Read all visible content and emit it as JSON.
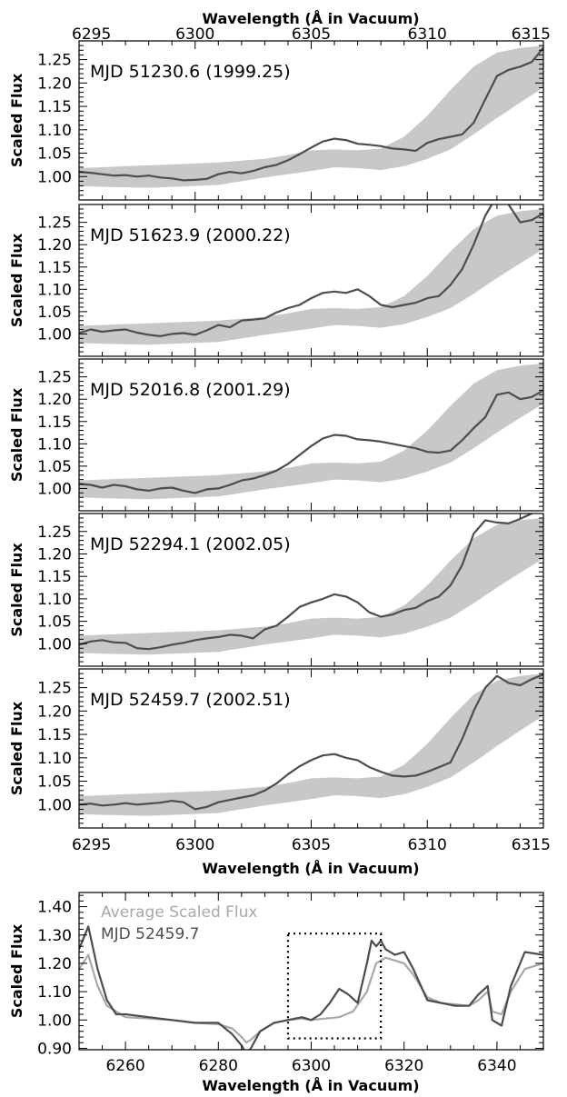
{
  "colors": {
    "band": "#c8c8c8",
    "spectrum": "#4d4d4d",
    "average": "#a8a8a8",
    "frame": "#000000"
  },
  "chart_data": [
    {
      "type": "area",
      "panel_label": "MJD 51230.6 (1999.25)",
      "top_xlabel": "Wavelength (Å in Vacuum)",
      "ylabel": "Scaled Flux",
      "xlim": [
        6295,
        6315
      ],
      "ylim": [
        0.95,
        1.29
      ],
      "xticks": [
        "6295",
        "6300",
        "6305",
        "6310",
        "6315"
      ],
      "yticks": [
        "1.00",
        "1.05",
        "1.10",
        "1.15",
        "1.20",
        "1.25"
      ],
      "band_x": [
        6295,
        6296,
        6297,
        6298,
        6299,
        6300,
        6301,
        6302,
        6303,
        6304,
        6305,
        6306,
        6307,
        6308,
        6309,
        6310,
        6311,
        6312,
        6313,
        6314,
        6315
      ],
      "band_lower": [
        0.98,
        0.978,
        0.977,
        0.976,
        0.978,
        0.98,
        0.982,
        0.99,
        0.998,
        1.005,
        1.012,
        1.02,
        1.018,
        1.014,
        1.022,
        1.038,
        1.058,
        1.09,
        1.125,
        1.158,
        1.19
      ],
      "band_upper": [
        1.018,
        1.02,
        1.022,
        1.024,
        1.026,
        1.028,
        1.03,
        1.034,
        1.038,
        1.046,
        1.056,
        1.058,
        1.056,
        1.06,
        1.085,
        1.13,
        1.185,
        1.235,
        1.265,
        1.275,
        1.28
      ],
      "series": [
        {
          "x": [
            6295,
            6295.5,
            6296,
            6296.5,
            6297,
            6297.5,
            6298,
            6298.5,
            6299,
            6299.5,
            6300,
            6300.5,
            6301,
            6301.5,
            6302,
            6302.5,
            6303,
            6303.5,
            6304,
            6304.5,
            6305,
            6305.5,
            6306,
            6306.5,
            6307,
            6307.5,
            6308,
            6308.5,
            6309,
            6309.5,
            6310,
            6310.5,
            6311,
            6311.5,
            6312,
            6312.5,
            6313,
            6313.5,
            6314,
            6314.5,
            6315
          ],
          "y": [
            1.01,
            1.008,
            1.005,
            1.002,
            1.003,
            1.0,
            1.002,
            0.998,
            0.996,
            0.992,
            0.993,
            0.995,
            1.005,
            1.01,
            1.007,
            1.012,
            1.02,
            1.025,
            1.035,
            1.048,
            1.062,
            1.075,
            1.081,
            1.078,
            1.07,
            1.068,
            1.065,
            1.06,
            1.058,
            1.055,
            1.072,
            1.08,
            1.085,
            1.09,
            1.115,
            1.165,
            1.215,
            1.228,
            1.235,
            1.245,
            1.275
          ]
        }
      ]
    },
    {
      "type": "area",
      "panel_label": "MJD 51623.9 (2000.22)",
      "ylabel": "Scaled Flux",
      "xlim": [
        6295,
        6315
      ],
      "ylim": [
        0.95,
        1.29
      ],
      "yticks": [
        "1.00",
        "1.05",
        "1.10",
        "1.15",
        "1.20",
        "1.25"
      ],
      "band_x": [
        6295,
        6296,
        6297,
        6298,
        6299,
        6300,
        6301,
        6302,
        6303,
        6304,
        6305,
        6306,
        6307,
        6308,
        6309,
        6310,
        6311,
        6312,
        6313,
        6314,
        6315
      ],
      "band_lower": [
        0.98,
        0.978,
        0.977,
        0.976,
        0.978,
        0.98,
        0.982,
        0.99,
        0.998,
        1.005,
        1.012,
        1.02,
        1.018,
        1.014,
        1.022,
        1.038,
        1.058,
        1.09,
        1.125,
        1.158,
        1.19
      ],
      "band_upper": [
        1.018,
        1.02,
        1.022,
        1.024,
        1.026,
        1.028,
        1.03,
        1.034,
        1.038,
        1.046,
        1.056,
        1.058,
        1.056,
        1.06,
        1.085,
        1.13,
        1.185,
        1.235,
        1.265,
        1.275,
        1.28
      ],
      "series": [
        {
          "x": [
            6295,
            6295.5,
            6296,
            6296.5,
            6297,
            6297.5,
            6298,
            6298.5,
            6299,
            6299.5,
            6300,
            6300.5,
            6301,
            6301.5,
            6302,
            6302.5,
            6303,
            6303.5,
            6304,
            6304.5,
            6305,
            6305.5,
            6306,
            6306.5,
            6307,
            6307.5,
            6308,
            6308.5,
            6309,
            6309.5,
            6310,
            6310.5,
            6311,
            6311.5,
            6312,
            6312.5,
            6313,
            6313.5,
            6314,
            6314.5,
            6315
          ],
          "y": [
            1.002,
            1.01,
            1.005,
            1.008,
            1.01,
            1.003,
            0.998,
            0.995,
            1.0,
            1.002,
            0.998,
            1.008,
            1.02,
            1.015,
            1.03,
            1.032,
            1.035,
            1.048,
            1.058,
            1.065,
            1.08,
            1.092,
            1.095,
            1.092,
            1.1,
            1.085,
            1.065,
            1.06,
            1.065,
            1.07,
            1.08,
            1.085,
            1.11,
            1.145,
            1.2,
            1.265,
            1.31,
            1.29,
            1.25,
            1.255,
            1.27
          ]
        }
      ]
    },
    {
      "type": "area",
      "panel_label": "MJD 52016.8 (2001.29)",
      "ylabel": "Scaled Flux",
      "xlim": [
        6295,
        6315
      ],
      "ylim": [
        0.95,
        1.29
      ],
      "yticks": [
        "1.00",
        "1.05",
        "1.10",
        "1.15",
        "1.20",
        "1.25"
      ],
      "band_x": [
        6295,
        6296,
        6297,
        6298,
        6299,
        6300,
        6301,
        6302,
        6303,
        6304,
        6305,
        6306,
        6307,
        6308,
        6309,
        6310,
        6311,
        6312,
        6313,
        6314,
        6315
      ],
      "band_lower": [
        0.98,
        0.978,
        0.977,
        0.976,
        0.978,
        0.98,
        0.982,
        0.99,
        0.998,
        1.005,
        1.012,
        1.02,
        1.018,
        1.014,
        1.022,
        1.038,
        1.058,
        1.09,
        1.125,
        1.158,
        1.19
      ],
      "band_upper": [
        1.018,
        1.02,
        1.022,
        1.024,
        1.026,
        1.028,
        1.03,
        1.034,
        1.038,
        1.046,
        1.056,
        1.058,
        1.056,
        1.06,
        1.085,
        1.13,
        1.185,
        1.235,
        1.265,
        1.275,
        1.28
      ],
      "series": [
        {
          "x": [
            6295,
            6295.5,
            6296,
            6296.5,
            6297,
            6297.5,
            6298,
            6298.5,
            6299,
            6299.5,
            6300,
            6300.5,
            6301,
            6301.5,
            6302,
            6302.5,
            6303,
            6303.5,
            6304,
            6304.5,
            6305,
            6305.5,
            6306,
            6306.5,
            6307,
            6307.5,
            6308,
            6308.5,
            6309,
            6309.5,
            6310,
            6310.5,
            6311,
            6311.5,
            6312,
            6312.5,
            6313,
            6313.5,
            6314,
            6314.5,
            6315
          ],
          "y": [
            1.01,
            1.008,
            1.002,
            1.008,
            1.005,
            0.998,
            0.995,
            1.0,
            1.002,
            0.995,
            0.99,
            0.998,
            1.0,
            1.008,
            1.018,
            1.022,
            1.03,
            1.04,
            1.055,
            1.075,
            1.095,
            1.112,
            1.12,
            1.118,
            1.11,
            1.108,
            1.105,
            1.1,
            1.095,
            1.09,
            1.082,
            1.08,
            1.085,
            1.108,
            1.135,
            1.16,
            1.21,
            1.215,
            1.2,
            1.205,
            1.22
          ]
        }
      ]
    },
    {
      "type": "area",
      "panel_label": "MJD 52294.1 (2002.05)",
      "ylabel": "Scaled Flux",
      "xlim": [
        6295,
        6315
      ],
      "ylim": [
        0.95,
        1.29
      ],
      "yticks": [
        "1.00",
        "1.05",
        "1.10",
        "1.15",
        "1.20",
        "1.25"
      ],
      "band_x": [
        6295,
        6296,
        6297,
        6298,
        6299,
        6300,
        6301,
        6302,
        6303,
        6304,
        6305,
        6306,
        6307,
        6308,
        6309,
        6310,
        6311,
        6312,
        6313,
        6314,
        6315
      ],
      "band_lower": [
        0.98,
        0.978,
        0.977,
        0.976,
        0.978,
        0.98,
        0.982,
        0.99,
        0.998,
        1.005,
        1.012,
        1.02,
        1.018,
        1.014,
        1.022,
        1.038,
        1.058,
        1.09,
        1.125,
        1.158,
        1.19
      ],
      "band_upper": [
        1.018,
        1.02,
        1.022,
        1.024,
        1.026,
        1.028,
        1.03,
        1.034,
        1.038,
        1.046,
        1.056,
        1.058,
        1.056,
        1.06,
        1.085,
        1.13,
        1.185,
        1.235,
        1.265,
        1.275,
        1.28
      ],
      "series": [
        {
          "x": [
            6295,
            6295.5,
            6296,
            6296.5,
            6297,
            6297.5,
            6298,
            6298.5,
            6299,
            6299.5,
            6300,
            6300.5,
            6301,
            6301.5,
            6302,
            6302.5,
            6303,
            6303.5,
            6304,
            6304.5,
            6305,
            6305.5,
            6306,
            6306.5,
            6307,
            6307.5,
            6308,
            6308.5,
            6309,
            6309.5,
            6310,
            6310.5,
            6311,
            6311.5,
            6312,
            6312.5,
            6313,
            6313.5,
            6314,
            6314.5,
            6315
          ],
          "y": [
            0.998,
            1.005,
            1.008,
            1.003,
            1.002,
            0.99,
            0.988,
            0.992,
            0.998,
            1.002,
            1.008,
            1.012,
            1.015,
            1.02,
            1.018,
            1.012,
            1.032,
            1.04,
            1.06,
            1.082,
            1.092,
            1.1,
            1.11,
            1.105,
            1.092,
            1.07,
            1.06,
            1.065,
            1.075,
            1.08,
            1.095,
            1.105,
            1.13,
            1.175,
            1.245,
            1.275,
            1.27,
            1.268,
            1.278,
            1.29,
            1.3
          ]
        }
      ]
    },
    {
      "type": "area",
      "panel_label": "MJD 52459.7 (2002.51)",
      "ylabel": "Scaled Flux",
      "bottom_xlabel": "Wavelength (Å in Vacuum)",
      "xlim": [
        6295,
        6315
      ],
      "ylim": [
        0.95,
        1.29
      ],
      "xticks": [
        "6295",
        "6300",
        "6305",
        "6310",
        "6315"
      ],
      "yticks": [
        "1.00",
        "1.05",
        "1.10",
        "1.15",
        "1.20",
        "1.25"
      ],
      "band_x": [
        6295,
        6296,
        6297,
        6298,
        6299,
        6300,
        6301,
        6302,
        6303,
        6304,
        6305,
        6306,
        6307,
        6308,
        6309,
        6310,
        6311,
        6312,
        6313,
        6314,
        6315
      ],
      "band_lower": [
        0.98,
        0.978,
        0.977,
        0.976,
        0.978,
        0.98,
        0.982,
        0.99,
        0.998,
        1.005,
        1.012,
        1.02,
        1.018,
        1.014,
        1.022,
        1.038,
        1.058,
        1.09,
        1.125,
        1.158,
        1.19
      ],
      "band_upper": [
        1.018,
        1.02,
        1.022,
        1.024,
        1.026,
        1.028,
        1.03,
        1.034,
        1.038,
        1.046,
        1.056,
        1.058,
        1.056,
        1.06,
        1.085,
        1.13,
        1.185,
        1.235,
        1.265,
        1.275,
        1.28
      ],
      "series": [
        {
          "x": [
            6295,
            6295.5,
            6296,
            6296.5,
            6297,
            6297.5,
            6298,
            6298.5,
            6299,
            6299.5,
            6300,
            6300.5,
            6301,
            6301.5,
            6302,
            6302.5,
            6303,
            6303.5,
            6304,
            6304.5,
            6305,
            6305.5,
            6306,
            6306.5,
            6307,
            6307.5,
            6308,
            6308.5,
            6309,
            6309.5,
            6310,
            6310.5,
            6311,
            6311.5,
            6312,
            6312.5,
            6313,
            6313.5,
            6314,
            6314.5,
            6315
          ],
          "y": [
            1.0,
            1.002,
            0.998,
            1.0,
            1.003,
            1.0,
            1.002,
            1.004,
            1.008,
            1.005,
            0.99,
            0.995,
            1.005,
            1.01,
            1.015,
            1.02,
            1.03,
            1.045,
            1.065,
            1.082,
            1.095,
            1.105,
            1.108,
            1.1,
            1.095,
            1.08,
            1.07,
            1.062,
            1.06,
            1.062,
            1.07,
            1.08,
            1.09,
            1.14,
            1.2,
            1.25,
            1.275,
            1.26,
            1.255,
            1.268,
            1.278
          ]
        }
      ]
    },
    {
      "type": "line",
      "xlabel": "Wavelength (Å in Vacuum)",
      "ylabel": "Scaled Flux",
      "xlim": [
        6250,
        6350
      ],
      "ylim": [
        0.895,
        1.45
      ],
      "xticks": [
        "6260",
        "6280",
        "6300",
        "6320",
        "6340"
      ],
      "yticks": [
        "0.90",
        "1.00",
        "1.10",
        "1.20",
        "1.30",
        "1.40"
      ],
      "legend": [
        "Average Scaled Flux",
        "MJD 52459.7"
      ],
      "box": {
        "x": [
          6295,
          6315
        ],
        "y": [
          0.935,
          1.305
        ]
      },
      "series": [
        {
          "name": "Average Scaled Flux",
          "x": [
            6250,
            6252,
            6254,
            6256,
            6258,
            6260,
            6265,
            6270,
            6275,
            6280,
            6283,
            6285,
            6286,
            6287,
            6289,
            6292,
            6295,
            6298,
            6300,
            6303,
            6306,
            6309,
            6312,
            6314,
            6316,
            6318,
            6320,
            6322,
            6325,
            6328,
            6331,
            6334,
            6336,
            6338,
            6339,
            6341,
            6343,
            6346,
            6350
          ],
          "y": [
            1.18,
            1.23,
            1.12,
            1.05,
            1.03,
            1.01,
            1.005,
            1.0,
            0.99,
            0.985,
            0.97,
            0.94,
            0.92,
            0.93,
            0.96,
            0.99,
            1.0,
            1.005,
            1.0,
            1.005,
            1.01,
            1.03,
            1.1,
            1.2,
            1.22,
            1.21,
            1.2,
            1.16,
            1.08,
            1.06,
            1.055,
            1.05,
            1.07,
            1.1,
            1.03,
            1.02,
            1.1,
            1.18,
            1.2
          ]
        },
        {
          "name": "MJD 52459.7",
          "x": [
            6250,
            6252,
            6254,
            6256,
            6258,
            6260,
            6265,
            6270,
            6275,
            6280,
            6283,
            6285,
            6286,
            6287,
            6289,
            6292,
            6295,
            6298,
            6300,
            6302,
            6304,
            6306,
            6308,
            6310,
            6312,
            6313,
            6314,
            6315,
            6316,
            6318,
            6320,
            6322,
            6325,
            6328,
            6331,
            6334,
            6336,
            6338,
            6339,
            6341,
            6343,
            6346,
            6350
          ],
          "y": [
            1.25,
            1.33,
            1.18,
            1.07,
            1.02,
            1.02,
            1.01,
            1.0,
            0.99,
            0.99,
            0.95,
            0.91,
            0.88,
            0.9,
            0.96,
            0.99,
            1.0,
            1.01,
            1.0,
            1.02,
            1.06,
            1.11,
            1.09,
            1.06,
            1.2,
            1.28,
            1.26,
            1.28,
            1.25,
            1.23,
            1.24,
            1.18,
            1.07,
            1.06,
            1.05,
            1.05,
            1.09,
            1.12,
            1.0,
            0.98,
            1.12,
            1.24,
            1.23
          ]
        }
      ]
    }
  ]
}
